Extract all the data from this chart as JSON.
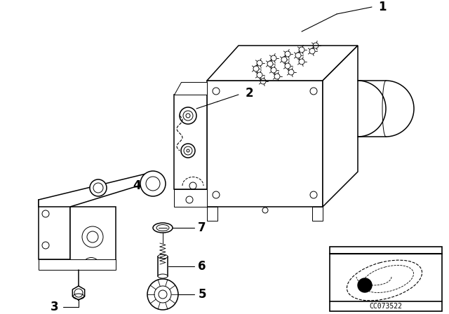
{
  "bg_color": "#ffffff",
  "line_color": "#000000",
  "part_number": "CC073522",
  "lw_main": 1.1,
  "lw_thin": 0.7,
  "label_fontsize": 11
}
